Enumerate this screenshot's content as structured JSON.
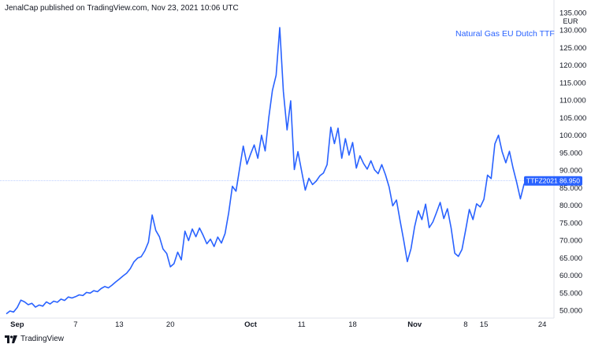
{
  "publisher_line": "JenalCap published on TradingView.com, Nov 23, 2021 10:06 UTC",
  "footer_brand": "TradingView",
  "accent_color": "#2962ff",
  "chart_data": {
    "type": "line",
    "title": "Natural Gas EU Dutch TTF",
    "unit": "EUR",
    "series_label": "TTFZ2021",
    "last_value": "86.950",
    "last_value_num": 86.95,
    "ylim": [
      48,
      135
    ],
    "y_ticks": [
      "50.000",
      "55.000",
      "60.000",
      "65.000",
      "70.000",
      "75.000",
      "80.000",
      "85.000",
      "90.000",
      "95.000",
      "100.000",
      "105.000",
      "110.000",
      "115.000",
      "120.000",
      "125.000",
      "130.000",
      "135.000"
    ],
    "x_ticks": [
      {
        "label": "Sep",
        "index": 3,
        "major": true
      },
      {
        "label": "7",
        "index": 19,
        "major": false
      },
      {
        "label": "13",
        "index": 31,
        "major": false
      },
      {
        "label": "20",
        "index": 45,
        "major": false
      },
      {
        "label": "Oct",
        "index": 67,
        "major": true
      },
      {
        "label": "11",
        "index": 81,
        "major": false
      },
      {
        "label": "18",
        "index": 95,
        "major": false
      },
      {
        "label": "Nov",
        "index": 112,
        "major": true
      },
      {
        "label": "8",
        "index": 126,
        "major": false
      },
      {
        "label": "15",
        "index": 131,
        "major": false
      },
      {
        "label": "24",
        "index": 147,
        "major": false
      }
    ],
    "x_domain": [
      0,
      150
    ],
    "grid": false,
    "series": [
      {
        "values": [
          {
            "x": 0,
            "y": 49.0
          },
          {
            "x": 1,
            "y": 49.8
          },
          {
            "x": 2,
            "y": 49.5
          },
          {
            "x": 3,
            "y": 50.8
          },
          {
            "x": 4,
            "y": 52.9
          },
          {
            "x": 5,
            "y": 52.4
          },
          {
            "x": 6,
            "y": 51.6
          },
          {
            "x": 7,
            "y": 52.0
          },
          {
            "x": 8,
            "y": 50.9
          },
          {
            "x": 9,
            "y": 51.5
          },
          {
            "x": 10,
            "y": 51.2
          },
          {
            "x": 11,
            "y": 52.4
          },
          {
            "x": 12,
            "y": 51.8
          },
          {
            "x": 13,
            "y": 52.6
          },
          {
            "x": 14,
            "y": 52.3
          },
          {
            "x": 15,
            "y": 53.2
          },
          {
            "x": 16,
            "y": 52.8
          },
          {
            "x": 17,
            "y": 53.8
          },
          {
            "x": 18,
            "y": 53.5
          },
          {
            "x": 19,
            "y": 53.9
          },
          {
            "x": 20,
            "y": 54.4
          },
          {
            "x": 21,
            "y": 54.2
          },
          {
            "x": 22,
            "y": 55.1
          },
          {
            "x": 23,
            "y": 54.9
          },
          {
            "x": 24,
            "y": 55.6
          },
          {
            "x": 25,
            "y": 55.3
          },
          {
            "x": 26,
            "y": 56.2
          },
          {
            "x": 27,
            "y": 56.8
          },
          {
            "x": 28,
            "y": 56.4
          },
          {
            "x": 29,
            "y": 57.2
          },
          {
            "x": 30,
            "y": 58.1
          },
          {
            "x": 31,
            "y": 58.9
          },
          {
            "x": 32,
            "y": 59.8
          },
          {
            "x": 33,
            "y": 60.6
          },
          {
            "x": 34,
            "y": 61.9
          },
          {
            "x": 35,
            "y": 63.8
          },
          {
            "x": 36,
            "y": 64.9
          },
          {
            "x": 37,
            "y": 65.3
          },
          {
            "x": 38,
            "y": 67.0
          },
          {
            "x": 39,
            "y": 69.5
          },
          {
            "x": 40,
            "y": 77.2
          },
          {
            "x": 41,
            "y": 72.8
          },
          {
            "x": 42,
            "y": 71.0
          },
          {
            "x": 43,
            "y": 67.5
          },
          {
            "x": 44,
            "y": 66.2
          },
          {
            "x": 45,
            "y": 62.4
          },
          {
            "x": 46,
            "y": 63.3
          },
          {
            "x": 47,
            "y": 66.6
          },
          {
            "x": 48,
            "y": 64.4
          },
          {
            "x": 49,
            "y": 72.6
          },
          {
            "x": 50,
            "y": 69.9
          },
          {
            "x": 51,
            "y": 73.2
          },
          {
            "x": 52,
            "y": 71.0
          },
          {
            "x": 53,
            "y": 73.5
          },
          {
            "x": 54,
            "y": 71.4
          },
          {
            "x": 55,
            "y": 69.0
          },
          {
            "x": 56,
            "y": 70.3
          },
          {
            "x": 57,
            "y": 68.2
          },
          {
            "x": 58,
            "y": 70.9
          },
          {
            "x": 59,
            "y": 69.2
          },
          {
            "x": 60,
            "y": 71.9
          },
          {
            "x": 61,
            "y": 77.8
          },
          {
            "x": 62,
            "y": 85.4
          },
          {
            "x": 63,
            "y": 84.0
          },
          {
            "x": 64,
            "y": 90.5
          },
          {
            "x": 65,
            "y": 96.9
          },
          {
            "x": 66,
            "y": 91.7
          },
          {
            "x": 67,
            "y": 94.6
          },
          {
            "x": 68,
            "y": 97.2
          },
          {
            "x": 69,
            "y": 93.4
          },
          {
            "x": 70,
            "y": 100.0
          },
          {
            "x": 71,
            "y": 95.5
          },
          {
            "x": 72,
            "y": 105.0
          },
          {
            "x": 73,
            "y": 112.8
          },
          {
            "x": 74,
            "y": 117.1
          },
          {
            "x": 75,
            "y": 130.7
          },
          {
            "x": 76,
            "y": 112.5
          },
          {
            "x": 77,
            "y": 101.5
          },
          {
            "x": 78,
            "y": 109.8
          },
          {
            "x": 79,
            "y": 90.2
          },
          {
            "x": 80,
            "y": 95.3
          },
          {
            "x": 81,
            "y": 89.7
          },
          {
            "x": 82,
            "y": 84.3
          },
          {
            "x": 83,
            "y": 87.7
          },
          {
            "x": 84,
            "y": 85.9
          },
          {
            "x": 85,
            "y": 86.9
          },
          {
            "x": 86,
            "y": 88.4
          },
          {
            "x": 87,
            "y": 89.2
          },
          {
            "x": 88,
            "y": 91.6
          },
          {
            "x": 89,
            "y": 102.3
          },
          {
            "x": 90,
            "y": 97.6
          },
          {
            "x": 91,
            "y": 102.0
          },
          {
            "x": 92,
            "y": 93.4
          },
          {
            "x": 93,
            "y": 99.0
          },
          {
            "x": 94,
            "y": 94.3
          },
          {
            "x": 95,
            "y": 97.9
          },
          {
            "x": 96,
            "y": 90.6
          },
          {
            "x": 97,
            "y": 94.1
          },
          {
            "x": 98,
            "y": 91.9
          },
          {
            "x": 99,
            "y": 90.3
          },
          {
            "x": 100,
            "y": 92.7
          },
          {
            "x": 101,
            "y": 90.1
          },
          {
            "x": 102,
            "y": 89.0
          },
          {
            "x": 103,
            "y": 91.6
          },
          {
            "x": 104,
            "y": 88.7
          },
          {
            "x": 105,
            "y": 85.2
          },
          {
            "x": 106,
            "y": 79.8
          },
          {
            "x": 107,
            "y": 81.5
          },
          {
            "x": 108,
            "y": 75.6
          },
          {
            "x": 109,
            "y": 70.0
          },
          {
            "x": 110,
            "y": 63.9
          },
          {
            "x": 111,
            "y": 67.6
          },
          {
            "x": 112,
            "y": 73.9
          },
          {
            "x": 113,
            "y": 78.4
          },
          {
            "x": 114,
            "y": 75.9
          },
          {
            "x": 115,
            "y": 80.3
          },
          {
            "x": 116,
            "y": 73.6
          },
          {
            "x": 117,
            "y": 75.2
          },
          {
            "x": 118,
            "y": 77.9
          },
          {
            "x": 119,
            "y": 80.8
          },
          {
            "x": 120,
            "y": 76.2
          },
          {
            "x": 121,
            "y": 79.0
          },
          {
            "x": 122,
            "y": 73.5
          },
          {
            "x": 123,
            "y": 66.3
          },
          {
            "x": 124,
            "y": 65.4
          },
          {
            "x": 125,
            "y": 67.4
          },
          {
            "x": 126,
            "y": 73.0
          },
          {
            "x": 127,
            "y": 78.8
          },
          {
            "x": 128,
            "y": 75.9
          },
          {
            "x": 129,
            "y": 80.4
          },
          {
            "x": 130,
            "y": 79.5
          },
          {
            "x": 131,
            "y": 81.7
          },
          {
            "x": 132,
            "y": 88.6
          },
          {
            "x": 133,
            "y": 87.6
          },
          {
            "x": 134,
            "y": 97.5
          },
          {
            "x": 135,
            "y": 100.0
          },
          {
            "x": 136,
            "y": 95.3
          },
          {
            "x": 137,
            "y": 92.1
          },
          {
            "x": 138,
            "y": 95.4
          },
          {
            "x": 139,
            "y": 90.6
          },
          {
            "x": 140,
            "y": 86.5
          },
          {
            "x": 141,
            "y": 81.8
          },
          {
            "x": 142,
            "y": 86.0
          },
          {
            "x": 143,
            "y": 86.95
          }
        ]
      }
    ]
  }
}
